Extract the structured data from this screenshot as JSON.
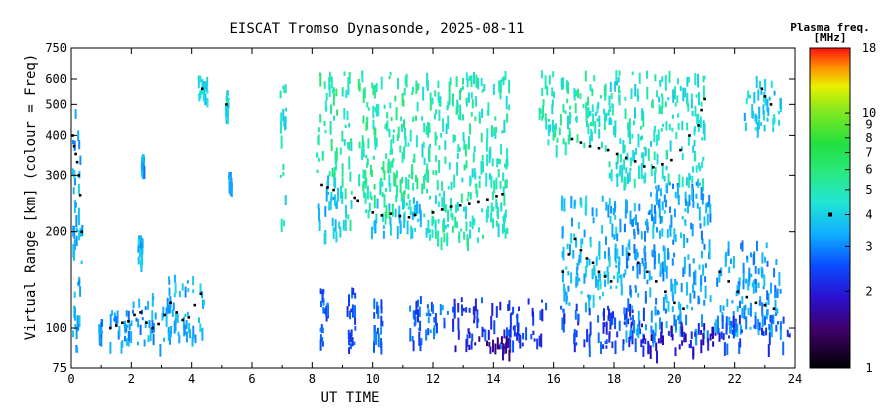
{
  "chart_data": {
    "type": "scatter",
    "title": "EISCAT Tromso Dynasonde, 2025-08-11",
    "xlabel": "UT TIME",
    "ylabel": "Virtual Range [km] (colour = Freq)",
    "xlim": [
      0,
      24
    ],
    "ylim": [
      75,
      750
    ],
    "yscale": "log",
    "x_ticks": [
      0,
      2,
      4,
      6,
      8,
      10,
      12,
      14,
      16,
      18,
      20,
      22,
      24
    ],
    "y_ticks": [
      75,
      100,
      200,
      300,
      400,
      500,
      600,
      750
    ],
    "grid": false,
    "colorbar": {
      "title": "Plasma freq.",
      "unit": "[MHz]",
      "scale": "log",
      "range": [
        1,
        18
      ],
      "ticks": [
        1,
        2,
        3,
        4,
        5,
        6,
        7,
        8,
        9,
        10,
        18
      ]
    },
    "clusters": [
      {
        "x0": 0.0,
        "x1": 0.35,
        "y0": 80,
        "y1": 490,
        "f": 3.4
      },
      {
        "x0": 0.9,
        "x1": 1.0,
        "y0": 95,
        "y1": 107,
        "f": 3.0
      },
      {
        "x0": 1.2,
        "x1": 1.9,
        "y0": 90,
        "y1": 115,
        "f": 3.3
      },
      {
        "x0": 1.8,
        "x1": 2.6,
        "y0": 88,
        "y1": 125,
        "f": 3.2
      },
      {
        "x0": 2.2,
        "x1": 2.35,
        "y0": 160,
        "y1": 195,
        "f": 3.6
      },
      {
        "x0": 2.3,
        "x1": 2.4,
        "y0": 320,
        "y1": 350,
        "f": 3.3
      },
      {
        "x0": 2.5,
        "x1": 3.3,
        "y0": 88,
        "y1": 130,
        "f": 3.3
      },
      {
        "x0": 3.2,
        "x1": 4.4,
        "y0": 90,
        "y1": 150,
        "f": 3.6
      },
      {
        "x0": 4.2,
        "x1": 4.5,
        "y0": 520,
        "y1": 620,
        "f": 3.9
      },
      {
        "x0": 5.1,
        "x1": 5.2,
        "y0": 460,
        "y1": 560,
        "f": 4.2
      },
      {
        "x0": 5.2,
        "x1": 5.3,
        "y0": 280,
        "y1": 310,
        "f": 3.3
      },
      {
        "x0": 6.9,
        "x1": 7.1,
        "y0": 210,
        "y1": 630,
        "f": 4.6
      },
      {
        "x0": 8.1,
        "x1": 8.8,
        "y0": 300,
        "y1": 640,
        "f": 5.4
      },
      {
        "x0": 8.1,
        "x1": 8.9,
        "y0": 190,
        "y1": 300,
        "f": 3.7
      },
      {
        "x0": 8.2,
        "x1": 8.5,
        "y0": 85,
        "y1": 140,
        "f": 2.6
      },
      {
        "x0": 8.9,
        "x1": 9.3,
        "y0": 210,
        "y1": 640,
        "f": 4.8
      },
      {
        "x0": 9.1,
        "x1": 9.4,
        "y0": 85,
        "y1": 135,
        "f": 2.5
      },
      {
        "x0": 9.5,
        "x1": 11.5,
        "y0": 230,
        "y1": 640,
        "f": 5.2
      },
      {
        "x0": 9.9,
        "x1": 11.6,
        "y0": 200,
        "y1": 260,
        "f": 3.8
      },
      {
        "x0": 10.0,
        "x1": 10.3,
        "y0": 88,
        "y1": 130,
        "f": 2.6
      },
      {
        "x0": 11.2,
        "x1": 11.6,
        "y0": 90,
        "y1": 130,
        "f": 2.6
      },
      {
        "x0": 11.6,
        "x1": 14.5,
        "y0": 190,
        "y1": 640,
        "f": 4.8
      },
      {
        "x0": 11.7,
        "x1": 12.5,
        "y0": 95,
        "y1": 125,
        "f": 2.8
      },
      {
        "x0": 12.6,
        "x1": 15.8,
        "y0": 90,
        "y1": 125,
        "f": 2.3
      },
      {
        "x0": 12.7,
        "x1": 14.5,
        "y0": 85,
        "y1": 95,
        "f": 1.6
      },
      {
        "x0": 15.5,
        "x1": 17.8,
        "y0": 370,
        "y1": 640,
        "f": 4.9
      },
      {
        "x0": 16.2,
        "x1": 18.3,
        "y0": 120,
        "y1": 260,
        "f": 3.6
      },
      {
        "x0": 16.2,
        "x1": 19.0,
        "y0": 88,
        "y1": 120,
        "f": 2.4
      },
      {
        "x0": 17.8,
        "x1": 21.0,
        "y0": 290,
        "y1": 640,
        "f": 4.5
      },
      {
        "x0": 18.3,
        "x1": 21.2,
        "y0": 95,
        "y1": 290,
        "f": 3.3
      },
      {
        "x0": 18.5,
        "x1": 21.5,
        "y0": 85,
        "y1": 105,
        "f": 1.9
      },
      {
        "x0": 21.3,
        "x1": 23.5,
        "y0": 100,
        "y1": 190,
        "f": 3.2
      },
      {
        "x0": 21.5,
        "x1": 23.8,
        "y0": 88,
        "y1": 110,
        "f": 2.4
      },
      {
        "x0": 22.3,
        "x1": 23.6,
        "y0": 420,
        "y1": 640,
        "f": 3.8
      }
    ],
    "trace_points": [
      [
        0.05,
        400
      ],
      [
        0.1,
        370
      ],
      [
        0.15,
        350
      ],
      [
        0.2,
        330
      ],
      [
        0.25,
        300
      ],
      [
        0.3,
        260
      ],
      [
        0.35,
        200
      ],
      [
        1.3,
        100
      ],
      [
        1.5,
        102
      ],
      [
        1.7,
        104
      ],
      [
        1.9,
        105
      ],
      [
        2.1,
        110
      ],
      [
        2.3,
        112
      ],
      [
        2.5,
        104
      ],
      [
        2.7,
        100
      ],
      [
        2.9,
        103
      ],
      [
        3.1,
        110
      ],
      [
        3.3,
        120
      ],
      [
        3.5,
        112
      ],
      [
        3.7,
        106
      ],
      [
        3.9,
        108
      ],
      [
        4.1,
        118
      ],
      [
        4.3,
        128
      ],
      [
        4.35,
        560
      ],
      [
        5.15,
        500
      ],
      [
        8.3,
        280
      ],
      [
        8.5,
        275
      ],
      [
        8.7,
        270
      ],
      [
        9.4,
        255
      ],
      [
        9.5,
        250
      ],
      [
        10.0,
        230
      ],
      [
        10.3,
        225
      ],
      [
        10.6,
        228
      ],
      [
        10.9,
        224
      ],
      [
        11.2,
        222
      ],
      [
        11.4,
        226
      ],
      [
        12.0,
        230
      ],
      [
        12.3,
        235
      ],
      [
        12.6,
        240
      ],
      [
        12.9,
        242
      ],
      [
        13.2,
        245
      ],
      [
        13.5,
        248
      ],
      [
        13.8,
        252
      ],
      [
        14.1,
        258
      ],
      [
        14.3,
        262
      ],
      [
        16.3,
        150
      ],
      [
        16.5,
        170
      ],
      [
        16.7,
        190
      ],
      [
        16.9,
        175
      ],
      [
        17.1,
        165
      ],
      [
        17.3,
        160
      ],
      [
        17.5,
        150
      ],
      [
        17.7,
        145
      ],
      [
        17.9,
        140
      ],
      [
        16.6,
        390
      ],
      [
        16.9,
        380
      ],
      [
        17.2,
        370
      ],
      [
        17.5,
        365
      ],
      [
        17.8,
        360
      ],
      [
        18.1,
        350
      ],
      [
        18.4,
        340
      ],
      [
        18.7,
        332
      ],
      [
        19.0,
        320
      ],
      [
        19.3,
        318
      ],
      [
        19.6,
        325
      ],
      [
        19.9,
        335
      ],
      [
        20.2,
        360
      ],
      [
        20.5,
        400
      ],
      [
        20.8,
        430
      ],
      [
        20.9,
        480
      ],
      [
        21.0,
        520
      ],
      [
        18.5,
        170
      ],
      [
        18.8,
        160
      ],
      [
        19.1,
        150
      ],
      [
        19.4,
        140
      ],
      [
        19.7,
        130
      ],
      [
        20.0,
        120
      ],
      [
        20.3,
        115
      ],
      [
        21.5,
        150
      ],
      [
        21.8,
        140
      ],
      [
        22.1,
        130
      ],
      [
        22.4,
        125
      ],
      [
        22.7,
        120
      ],
      [
        23.0,
        118
      ],
      [
        23.3,
        115
      ],
      [
        22.9,
        560
      ],
      [
        23.0,
        530
      ],
      [
        23.2,
        500
      ]
    ]
  }
}
